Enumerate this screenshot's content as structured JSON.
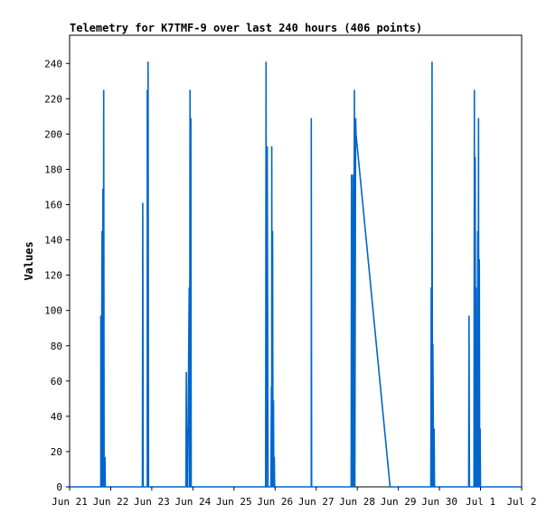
{
  "chart_data": {
    "type": "line",
    "title": "Telemetry for K7TMF-9 over last 240 hours (406 points)",
    "ylabel": "Values",
    "xlabel": "",
    "ylim": [
      0,
      256
    ],
    "xlim": [
      0,
      11
    ],
    "yticks": [
      0,
      20,
      40,
      60,
      80,
      100,
      120,
      140,
      160,
      180,
      200,
      220,
      240
    ],
    "xticks": [
      {
        "pos": 0,
        "label": "Jun 21"
      },
      {
        "pos": 1,
        "label": "Jun 22"
      },
      {
        "pos": 2,
        "label": "Jun 23"
      },
      {
        "pos": 3,
        "label": "Jun 24"
      },
      {
        "pos": 4,
        "label": "Jun 25"
      },
      {
        "pos": 5,
        "label": "Jun 26"
      },
      {
        "pos": 6,
        "label": "Jun 27"
      },
      {
        "pos": 7,
        "label": "Jun 28"
      },
      {
        "pos": 8,
        "label": "Jun 29"
      },
      {
        "pos": 9,
        "label": "Jun 30"
      },
      {
        "pos": 10,
        "label": "Jul 1"
      },
      {
        "pos": 11,
        "label": "Jul 2"
      }
    ],
    "line_color": "#0066cc",
    "grid": false,
    "series": [
      {
        "points": [
          [
            0.76,
            0
          ],
          [
            0.76,
            97
          ],
          [
            0.77,
            0
          ],
          [
            0.79,
            145
          ],
          [
            0.8,
            0
          ],
          [
            0.81,
            169
          ],
          [
            0.82,
            0
          ],
          [
            0.83,
            225
          ],
          [
            0.84,
            0
          ],
          [
            0.86,
            17
          ],
          [
            0.87,
            0
          ],
          [
            1.77,
            0
          ],
          [
            1.78,
            161
          ],
          [
            1.79,
            0
          ],
          [
            1.89,
            0
          ],
          [
            1.89,
            225
          ],
          [
            1.9,
            0
          ],
          [
            1.91,
            241
          ],
          [
            1.92,
            0
          ],
          [
            2.83,
            0
          ],
          [
            2.84,
            65
          ],
          [
            2.85,
            0
          ],
          [
            2.86,
            33
          ],
          [
            2.87,
            0
          ],
          [
            2.91,
            113
          ],
          [
            2.92,
            0
          ],
          [
            2.93,
            225
          ],
          [
            2.94,
            0
          ],
          [
            2.95,
            209
          ],
          [
            2.96,
            0
          ],
          [
            4.77,
            0
          ],
          [
            4.78,
            241
          ],
          [
            4.79,
            0
          ],
          [
            4.81,
            193
          ],
          [
            4.83,
            0
          ],
          [
            4.9,
            0
          ],
          [
            4.91,
            57
          ],
          [
            4.92,
            0
          ],
          [
            4.92,
            193
          ],
          [
            4.93,
            0
          ],
          [
            4.94,
            145
          ],
          [
            4.95,
            0
          ],
          [
            4.96,
            49
          ],
          [
            4.97,
            0
          ],
          [
            4.98,
            17
          ],
          [
            4.99,
            0
          ],
          [
            5.88,
            0
          ],
          [
            5.88,
            209
          ],
          [
            5.89,
            0
          ],
          [
            6.85,
            0
          ],
          [
            6.86,
            177
          ],
          [
            6.88,
            0
          ],
          [
            6.9,
            177
          ],
          [
            6.91,
            0
          ],
          [
            6.93,
            225
          ],
          [
            6.94,
            0
          ],
          [
            6.96,
            209
          ],
          [
            6.97,
            200
          ],
          [
            7.8,
            0
          ],
          [
            8.79,
            0
          ],
          [
            8.8,
            113
          ],
          [
            8.81,
            0
          ],
          [
            8.82,
            241
          ],
          [
            8.83,
            0
          ],
          [
            8.84,
            81
          ],
          [
            8.86,
            0
          ],
          [
            8.87,
            33
          ],
          [
            8.88,
            0
          ],
          [
            9.71,
            0
          ],
          [
            9.72,
            97
          ],
          [
            9.73,
            0
          ],
          [
            9.84,
            0
          ],
          [
            9.85,
            225
          ],
          [
            9.86,
            0
          ],
          [
            9.87,
            187
          ],
          [
            9.88,
            0
          ],
          [
            9.89,
            113
          ],
          [
            9.9,
            0
          ],
          [
            9.91,
            37
          ],
          [
            9.92,
            0
          ],
          [
            9.93,
            145
          ],
          [
            9.94,
            0
          ],
          [
            9.95,
            209
          ],
          [
            9.96,
            0
          ],
          [
            9.97,
            129
          ],
          [
            9.98,
            0
          ],
          [
            9.99,
            33
          ],
          [
            10.0,
            0
          ]
        ]
      }
    ]
  }
}
